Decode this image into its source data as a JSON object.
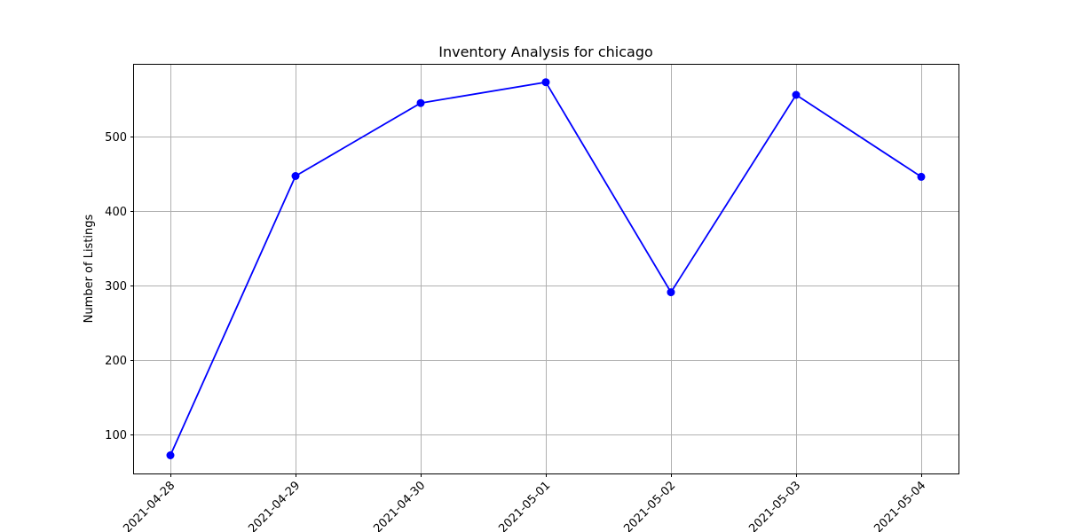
{
  "chart_data": {
    "type": "line",
    "title": "Inventory Analysis for chicago",
    "xlabel": "",
    "ylabel": "Number of Listings",
    "x": [
      "2021-04-28",
      "2021-04-29",
      "2021-04-30",
      "2021-05-01",
      "2021-05-02",
      "2021-05-03",
      "2021-05-04"
    ],
    "series": [
      {
        "values": [
          72,
          447,
          545,
          573,
          291,
          556,
          446
        ],
        "color": "#0000ff",
        "marker": "circle"
      }
    ],
    "yticks": [
      100,
      200,
      300,
      400,
      500
    ],
    "ylim": [
      50,
      595
    ],
    "grid": true,
    "x_tick_rotation": 45
  }
}
